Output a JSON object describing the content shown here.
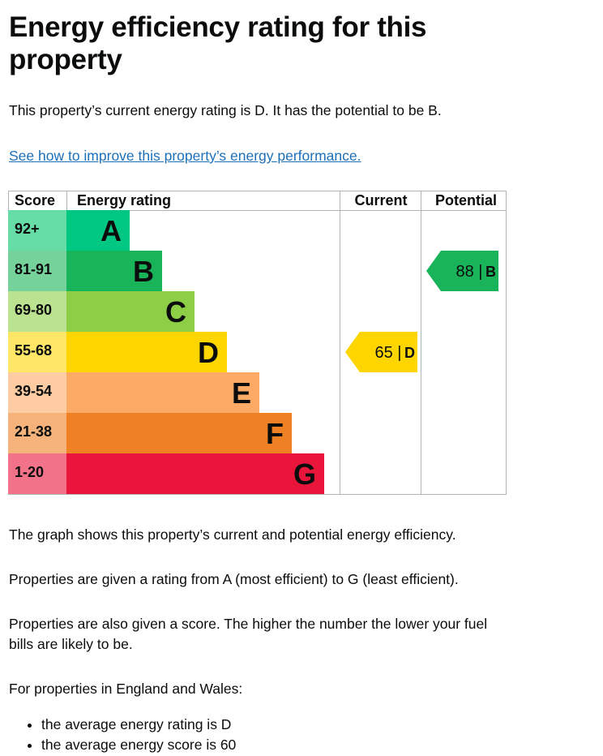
{
  "heading": "Energy efficiency rating for this property",
  "intro": "This property’s current energy rating is D. It has the potential to be B.",
  "improve_link": "See how to improve this property’s energy performance.",
  "chart_data": {
    "type": "bar",
    "columns": {
      "score": "Score",
      "rating": "Energy rating",
      "current": "Current",
      "potential": "Potential"
    },
    "bands": [
      {
        "letter": "A",
        "range": "92+",
        "color": "#00c781",
        "score_color": "#66dda7"
      },
      {
        "letter": "B",
        "range": "81-91",
        "color": "#19b459",
        "score_color": "#75d29b"
      },
      {
        "letter": "C",
        "range": "69-80",
        "color": "#8dce46",
        "score_color": "#bbe290"
      },
      {
        "letter": "D",
        "range": "55-68",
        "color": "#ffd500",
        "score_color": "#ffe666"
      },
      {
        "letter": "E",
        "range": "39-54",
        "color": "#fcaa65",
        "score_color": "#fdcca3"
      },
      {
        "letter": "F",
        "range": "21-38",
        "color": "#ef8023",
        "score_color": "#f5b37b"
      },
      {
        "letter": "G",
        "range": "1-20",
        "color": "#e9153b",
        "score_color": "#f27389"
      }
    ],
    "current": {
      "score": 65,
      "band": "D",
      "label": "65 |",
      "letter": "D"
    },
    "potential": {
      "score": 88,
      "band": "B",
      "label": "88 |",
      "letter": "B"
    }
  },
  "graph_note": "The graph shows this property’s current and potential energy efficiency.",
  "rating_note": "Properties are given a rating from A (most efficient) to G (least efficient).",
  "score_note": "Properties are also given a score. The higher the number the lower your fuel bills are likely to be.",
  "region_intro": "For properties in England and Wales:",
  "averages": [
    "the average energy rating is D",
    "the average energy score is 60"
  ]
}
